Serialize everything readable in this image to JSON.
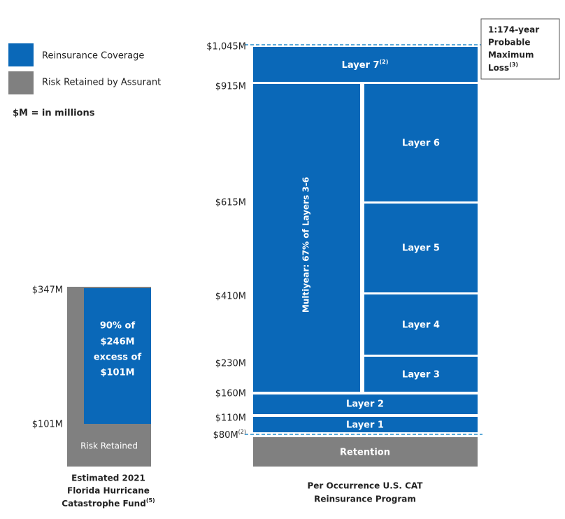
{
  "legend": [
    {
      "label": "Reinsurance Coverage"
    },
    {
      "label": "Risk Retained by Assurant"
    }
  ],
  "note": "$M = in millions",
  "fhcf": {
    "top_label": "$347M",
    "bottom_label": "$101M",
    "coverage_lines": [
      "90% of",
      "$246M",
      "excess of",
      "$101M"
    ],
    "retained": "Risk Retained",
    "caption": [
      "Estimated 2021",
      "Florida Hurricane",
      "Catastrophe Fund"
    ],
    "caption_sup": "(5)"
  },
  "program": {
    "axis_labels": [
      "$1,045M",
      "$915M",
      "$615M",
      "$410M",
      "$230M",
      "$160M",
      "$110M",
      "$80M"
    ],
    "axis_sup": "(2)",
    "layer7": "Layer 7",
    "layer7_sup": "(2)",
    "multiyear": "Multiyear: 67% of Layers 3-6",
    "layers": [
      "Layer 6",
      "Layer 5",
      "Layer 4",
      "Layer 3",
      "Layer 2",
      "Layer 1"
    ],
    "retention": "Retention",
    "pml": [
      "1:174-year",
      "Probable",
      "Maximum",
      "Loss"
    ],
    "pml_sup": "(3)",
    "caption": [
      "Per Occurrence U.S. CAT",
      "Reinsurance Program"
    ]
  }
}
